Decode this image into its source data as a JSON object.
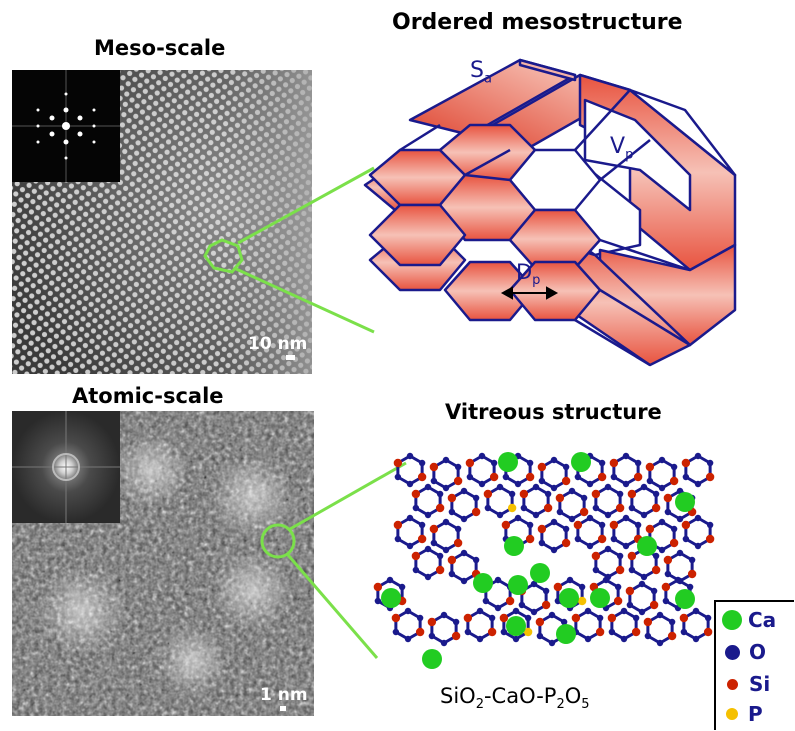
{
  "titles": {
    "meso": "Meso-scale",
    "atomic": "Atomic-scale",
    "ordered": "Ordered mesostructure",
    "vitreous": "Vitreous structure"
  },
  "scale_bars": {
    "meso": "10 nm",
    "atomic": "1 nm"
  },
  "labels": {
    "surface": "S",
    "surface_sub": "a",
    "volume": "V",
    "volume_sub": "p",
    "diameter": "D",
    "diameter_sub": "p"
  },
  "formula": {
    "a": "SiO",
    "a_sub": "2",
    "b": "-CaO-P",
    "b_sub": "2",
    "c": "O",
    "c_sub": "5"
  },
  "legend": [
    {
      "label": "Ca",
      "color": "#22cc22"
    },
    {
      "label": "O",
      "color": "#1a1a8c"
    },
    {
      "label": "Si",
      "color": "#cc2200"
    },
    {
      "label": "P",
      "color": "#f5c000"
    }
  ],
  "colors": {
    "callout_line": "#7be04a",
    "hexagon_outline": "#1a1a8c",
    "pore_fill_light": "#f8c4b8",
    "pore_fill_dark": "#e8533f"
  }
}
